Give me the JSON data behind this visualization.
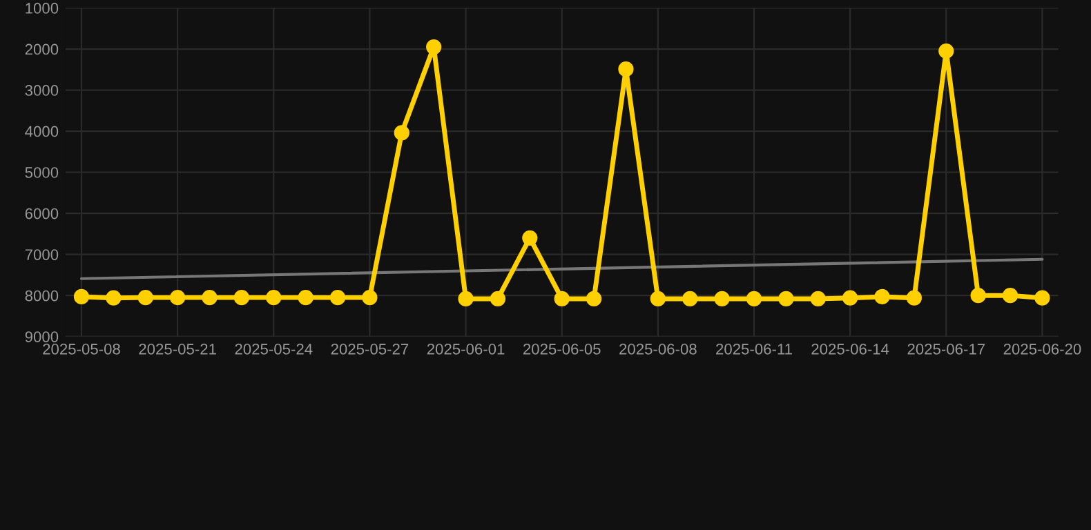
{
  "chart_data": {
    "type": "line",
    "categories": [
      "2025-05-08",
      null,
      null,
      "2025-05-21",
      null,
      null,
      "2025-05-24",
      null,
      null,
      "2025-05-27",
      null,
      null,
      "2025-06-01",
      null,
      null,
      "2025-06-05",
      null,
      null,
      "2025-06-08",
      null,
      null,
      "2025-06-11",
      null,
      null,
      "2025-06-14",
      null,
      null,
      "2025-06-17",
      null,
      null,
      "2025-06-20"
    ],
    "series": [
      {
        "color": "#ffd000",
        "marker": "circle",
        "values": [
          8030,
          8060,
          8050,
          8050,
          8050,
          8050,
          8050,
          8050,
          8050,
          8050,
          4040,
          1950,
          8080,
          8080,
          6600,
          8080,
          8080,
          2490,
          8080,
          8080,
          8080,
          8080,
          8080,
          8080,
          8060,
          8030,
          8060,
          2050,
          8000,
          8000,
          8060
        ]
      },
      {
        "color": "#777777",
        "marker": "none",
        "values": [
          7590,
          null,
          null,
          null,
          null,
          null,
          null,
          null,
          null,
          null,
          null,
          null,
          null,
          null,
          null,
          null,
          null,
          null,
          null,
          null,
          null,
          null,
          null,
          null,
          null,
          null,
          null,
          null,
          null,
          null,
          7120
        ]
      }
    ],
    "ylim": [
      9000,
      1000
    ],
    "yticks": [
      1000,
      2000,
      3000,
      4000,
      5000,
      6000,
      7000,
      8000,
      9000
    ],
    "grid": true,
    "legend": false,
    "line_style": "solid"
  }
}
